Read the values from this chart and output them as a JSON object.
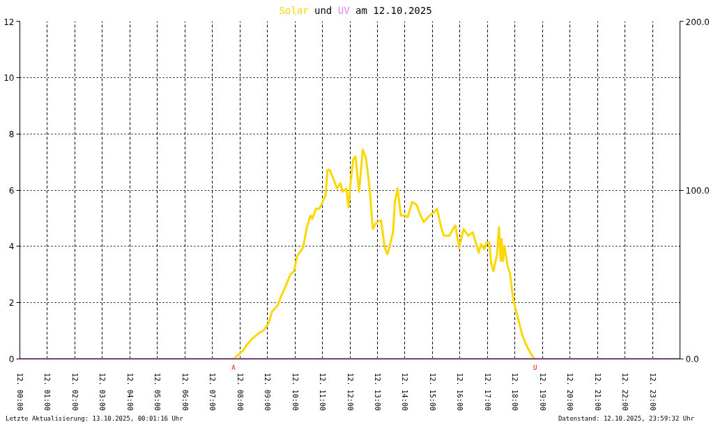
{
  "chart_data": {
    "type": "line",
    "title": "Solar und UV am 12.10.2025",
    "xlim": [
      "2025-10-12T00:00",
      "2025-10-13T00:00"
    ],
    "xticks": [
      {
        "value": "2025-10-12T00:00",
        "label": "12. 00:00"
      },
      {
        "value": "2025-10-12T01:00",
        "label": "12. 01:00"
      },
      {
        "value": "2025-10-12T02:00",
        "label": "12. 02:00"
      },
      {
        "value": "2025-10-12T03:00",
        "label": "12. 03:00"
      },
      {
        "value": "2025-10-12T04:00",
        "label": "12. 04:00"
      },
      {
        "value": "2025-10-12T05:00",
        "label": "12. 05:00"
      },
      {
        "value": "2025-10-12T06:00",
        "label": "12. 06:00"
      },
      {
        "value": "2025-10-12T07:00",
        "label": "12. 07:00"
      },
      {
        "value": "2025-10-12T08:00",
        "label": "12. 08:00"
      },
      {
        "value": "2025-10-12T09:00",
        "label": "12. 09:00"
      },
      {
        "value": "2025-10-12T10:00",
        "label": "12. 10:00"
      },
      {
        "value": "2025-10-12T11:00",
        "label": "12. 11:00"
      },
      {
        "value": "2025-10-12T12:00",
        "label": "12. 12:00"
      },
      {
        "value": "2025-10-12T13:00",
        "label": "12. 13:00"
      },
      {
        "value": "2025-10-12T14:00",
        "label": "12. 14:00"
      },
      {
        "value": "2025-10-12T15:00",
        "label": "12. 15:00"
      },
      {
        "value": "2025-10-12T16:00",
        "label": "12. 16:00"
      },
      {
        "value": "2025-10-12T17:00",
        "label": "12. 17:00"
      },
      {
        "value": "2025-10-12T18:00",
        "label": "12. 18:00"
      },
      {
        "value": "2025-10-12T19:00",
        "label": "12. 19:00"
      },
      {
        "value": "2025-10-12T20:00",
        "label": "12. 20:00"
      },
      {
        "value": "2025-10-12T21:00",
        "label": "12. 21:00"
      },
      {
        "value": "2025-10-12T22:00",
        "label": "12. 22:00"
      },
      {
        "value": "2025-10-12T23:00",
        "label": "12. 23:00"
      }
    ],
    "ylim": [
      0,
      12
    ],
    "yticks": [
      0,
      2,
      4,
      6,
      8,
      10,
      12
    ],
    "y2lim": [
      0,
      200
    ],
    "y2ticks": [
      {
        "value": 0,
        "label": "0.0"
      },
      {
        "value": 100,
        "label": "100.0"
      },
      {
        "value": 200,
        "label": "200.0"
      }
    ],
    "grid": true,
    "series": [
      {
        "color": "#ffd700",
        "axis": "y2",
        "x": [
          "2025-10-12T00:00",
          "2025-10-12T07:46",
          "2025-10-12T08:07",
          "2025-10-12T08:14",
          "2025-10-12T08:27",
          "2025-10-12T08:40",
          "2025-10-12T08:52",
          "2025-10-12T09:02",
          "2025-10-12T09:10",
          "2025-10-12T09:23",
          "2025-10-12T09:28",
          "2025-10-12T09:38",
          "2025-10-12T09:50",
          "2025-10-12T09:58",
          "2025-10-12T10:05",
          "2025-10-12T10:18",
          "2025-10-12T10:26",
          "2025-10-12T10:34",
          "2025-10-12T10:38",
          "2025-10-12T10:46",
          "2025-10-12T10:53",
          "2025-10-12T10:59",
          "2025-10-12T11:07",
          "2025-10-12T11:11",
          "2025-10-12T11:16",
          "2025-10-12T11:32",
          "2025-10-12T11:39",
          "2025-10-12T11:44",
          "2025-10-12T11:52",
          "2025-10-12T11:57",
          "2025-10-12T12:02",
          "2025-10-12T12:07",
          "2025-10-12T12:12",
          "2025-10-12T12:20",
          "2025-10-12T12:28",
          "2025-10-12T12:35",
          "2025-10-12T12:43",
          "2025-10-12T12:50",
          "2025-10-12T12:58",
          "2025-10-12T13:08",
          "2025-10-12T13:16",
          "2025-10-12T13:22",
          "2025-10-12T13:34",
          "2025-10-12T13:38",
          "2025-10-12T13:44",
          "2025-10-12T13:51",
          "2025-10-12T14:01",
          "2025-10-12T14:06",
          "2025-10-12T14:16",
          "2025-10-12T14:26",
          "2025-10-12T14:34",
          "2025-10-12T14:41",
          "2025-10-12T14:54",
          "2025-10-12T15:04",
          "2025-10-12T15:10",
          "2025-10-12T15:19",
          "2025-10-12T15:25",
          "2025-10-12T15:37",
          "2025-10-12T15:45",
          "2025-10-12T15:50",
          "2025-10-12T15:58",
          "2025-10-12T16:08",
          "2025-10-12T16:18",
          "2025-10-12T16:28",
          "2025-10-12T16:41",
          "2025-10-12T16:46",
          "2025-10-12T16:53",
          "2025-10-12T16:58",
          "2025-10-12T17:04",
          "2025-10-12T17:08",
          "2025-10-12T17:13",
          "2025-10-12T17:21",
          "2025-10-12T17:25",
          "2025-10-12T17:29",
          "2025-10-12T17:31",
          "2025-10-12T17:34",
          "2025-10-12T17:37",
          "2025-10-12T17:44",
          "2025-10-12T17:49",
          "2025-10-12T17:54",
          "2025-10-12T17:59",
          "2025-10-12T18:07",
          "2025-10-12T18:14",
          "2025-10-12T18:22",
          "2025-10-12T18:29",
          "2025-10-12T18:37",
          "2025-10-12T18:44",
          "2025-10-13T00:00"
        ],
        "values": [
          0,
          0,
          5,
          8,
          12,
          15,
          17,
          21,
          28,
          32,
          36,
          42,
          50,
          52,
          61,
          66,
          78,
          85,
          83,
          89,
          89,
          92,
          97,
          112,
          112,
          101,
          104,
          99,
          101,
          90,
          106,
          118,
          120,
          99,
          124,
          119,
          101,
          77,
          81,
          82,
          66,
          62,
          75,
          93,
          101,
          85,
          85,
          84,
          93,
          91,
          85,
          81,
          85,
          87,
          89,
          78,
          73,
          73,
          77,
          79,
          66,
          77,
          73,
          75,
          63,
          68,
          65,
          69,
          69,
          57,
          52,
          62,
          78,
          58,
          71,
          58,
          67,
          55,
          51,
          40,
          32,
          24,
          16,
          10,
          6,
          2,
          0,
          0
        ]
      },
      {
        "color": "#ee82ee",
        "axis": "y",
        "x": [
          "2025-10-12T00:00",
          "2025-10-13T00:00"
        ],
        "values": [
          0,
          0
        ]
      }
    ],
    "annotations": [
      "A",
      "U",
      "Letzte Aktualisierung: 13.10.2025, 00:01:16 Uhr",
      "Datenstand: 12.10.2025, 23:59:32 Uhr"
    ]
  }
}
